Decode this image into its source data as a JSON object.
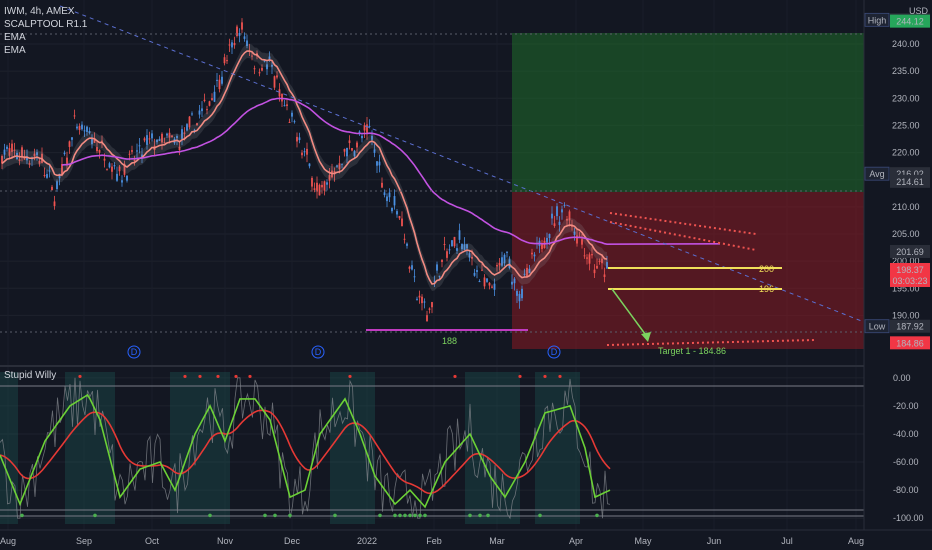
{
  "legend": {
    "symbol": "IWM, 4h, AMEX",
    "indicators": [
      "SCALPTOOL R1.1",
      "EMA",
      "EMA"
    ],
    "oscillator": "Stupid Willy"
  },
  "currency": "USD",
  "chart_data": [
    {
      "type": "candlestick",
      "y_axis_ticks": [
        "240.00",
        "235.00",
        "230.00",
        "225.00",
        "220.00",
        "215.00",
        "210.00",
        "205.00",
        "200.00",
        "195.00",
        "190.00"
      ],
      "ylim": [
        184,
        247
      ],
      "x_axis_ticks": [
        "Aug",
        "Sep",
        "Oct",
        "Nov",
        "Dec",
        "2022",
        "Feb",
        "Mar",
        "Apr",
        "May",
        "Jun",
        "Jul",
        "Aug"
      ],
      "price_tags": [
        {
          "label": "High",
          "value": "244.36",
          "style": "label"
        },
        {
          "label": "",
          "value": "244.12",
          "style": "green"
        },
        {
          "label": "Avg",
          "value": "216.02",
          "style": "label"
        },
        {
          "label": "",
          "value": "214.61",
          "style": "dark"
        },
        {
          "label": "",
          "value": "201.69",
          "style": "dark"
        },
        {
          "label": "",
          "value": "198.37",
          "style": "red",
          "countdown": "03:03:23"
        },
        {
          "label": "Low",
          "value": "187.92",
          "style": "label"
        },
        {
          "label": "",
          "value": "184.86",
          "style": "red"
        }
      ],
      "annotations": {
        "level_200": "200",
        "level_196": "196",
        "support": "188",
        "target": "Target 1 - 184.86"
      },
      "events": [
        "D",
        "D",
        "D"
      ],
      "colors": {
        "up": "#4a90e2",
        "down": "#ef5350",
        "ema_fast": "#f28b82",
        "ema_slow": "#c252e1",
        "levels": "#f0e05a",
        "target": "#7cd35f",
        "support": "#c03bc0"
      }
    },
    {
      "type": "line",
      "title": "Stupid Willy",
      "y_axis_ticks": [
        "0.00",
        "-20.00",
        "-40.00",
        "-60.00",
        "-80.00",
        "-100.00"
      ],
      "ylim": [
        -107,
        7
      ],
      "series_colors": {
        "fast": "#6cd136",
        "slow": "#e53935",
        "raw": "#7f8389"
      }
    }
  ]
}
